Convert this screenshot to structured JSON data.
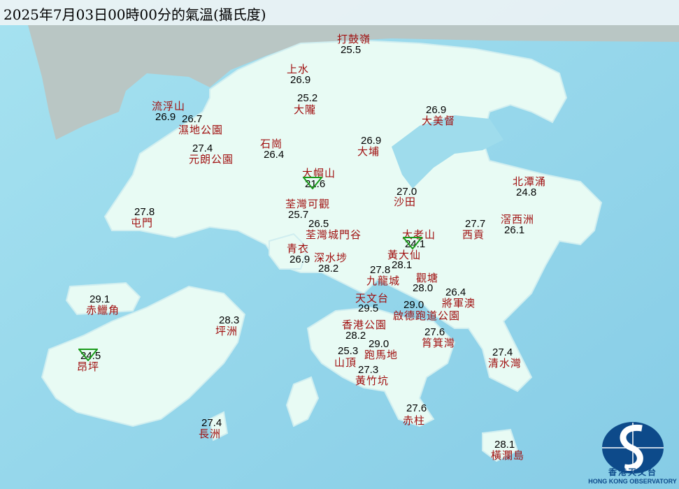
{
  "title": "2025年7月03日00時00分的氣溫(攝氏度)",
  "colors": {
    "sea": "#9fdcec",
    "land": "#e8fbf4",
    "station_name": "#a00f0f",
    "temperature": "#000000",
    "min_marker": "#1a9a1a"
  },
  "stations": [
    {
      "name": "打鼓嶺",
      "temp": "25.5"
    },
    {
      "name": "上水",
      "temp": "26.9"
    },
    {
      "name": "大隴",
      "temp": "25.2"
    },
    {
      "name": "流浮山",
      "temp": "26.9"
    },
    {
      "name": "濕地公園",
      "temp": "26.7"
    },
    {
      "name": "元朗公園",
      "temp": "27.4"
    },
    {
      "name": "石崗",
      "temp": "26.4"
    },
    {
      "name": "大埔",
      "temp": "26.9"
    },
    {
      "name": "大美督",
      "temp": "26.9"
    },
    {
      "name": "大帽山",
      "temp": "21.6",
      "marker": "min-triangle"
    },
    {
      "name": "沙田",
      "temp": "27.0"
    },
    {
      "name": "北潭涌",
      "temp": "24.8"
    },
    {
      "name": "荃灣可觀",
      "temp": "25.7"
    },
    {
      "name": "荃灣城門谷",
      "temp": "26.5"
    },
    {
      "name": "屯門",
      "temp": "27.8"
    },
    {
      "name": "西貢",
      "temp": "27.7"
    },
    {
      "name": "滘西洲",
      "temp": "26.1"
    },
    {
      "name": "大老山",
      "temp": "24.1",
      "marker": "min-triangle"
    },
    {
      "name": "青衣",
      "temp": "26.9"
    },
    {
      "name": "深水埗",
      "temp": "28.2"
    },
    {
      "name": "黃大仙",
      "temp": "28.1"
    },
    {
      "name": "九龍城",
      "temp": "27.8"
    },
    {
      "name": "觀塘",
      "temp": "28.0"
    },
    {
      "name": "天文台",
      "temp": "29.5"
    },
    {
      "name": "將軍澳",
      "temp": "26.4"
    },
    {
      "name": "啟德跑道公園",
      "temp": "29.0"
    },
    {
      "name": "香港公園",
      "temp": "28.2"
    },
    {
      "name": "赤鱲角",
      "temp": "29.1"
    },
    {
      "name": "坪洲",
      "temp": "28.3"
    },
    {
      "name": "筲箕灣",
      "temp": "27.6"
    },
    {
      "name": "跑馬地",
      "temp": "29.0"
    },
    {
      "name": "山頂",
      "temp": "25.3"
    },
    {
      "name": "黃竹坑",
      "temp": "27.3"
    },
    {
      "name": "清水灣",
      "temp": "27.4"
    },
    {
      "name": "昂坪",
      "temp": "24.5",
      "marker": "min-triangle"
    },
    {
      "name": "赤柱",
      "temp": "27.6"
    },
    {
      "name": "長洲",
      "temp": "27.4"
    },
    {
      "name": "橫瀾島",
      "temp": "28.1"
    }
  ],
  "logo": {
    "name_cn": "香港天文台",
    "name_en": "HONG KONG OBSERVATORY"
  }
}
